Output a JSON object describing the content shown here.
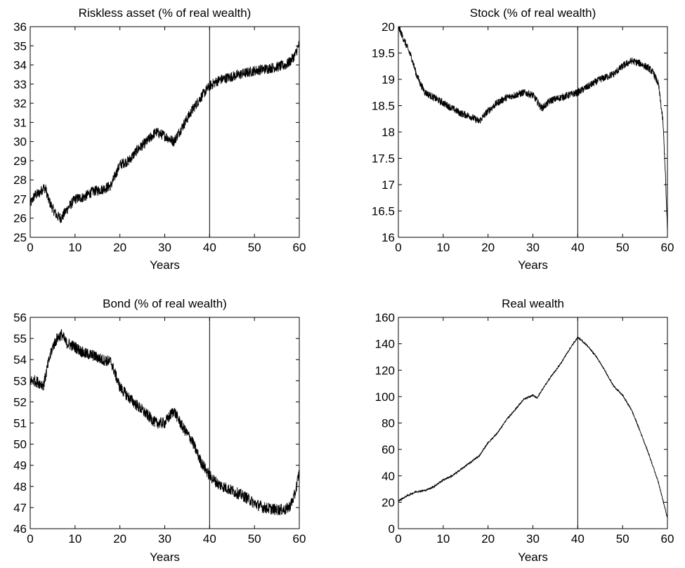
{
  "chart_data": [
    {
      "type": "line",
      "title": "Riskless asset (% of real wealth)",
      "xlabel": "Years",
      "ylabel": "",
      "xlim": [
        0,
        60
      ],
      "ylim": [
        25,
        36
      ],
      "xticks": [
        0,
        10,
        20,
        30,
        40,
        50,
        60
      ],
      "yticks": [
        25,
        26,
        27,
        28,
        29,
        30,
        31,
        32,
        33,
        34,
        35,
        36
      ],
      "vline_x": 40,
      "grid": false,
      "noise": 0.55,
      "series": [
        {
          "x": [
            0,
            1,
            2,
            3,
            3.5,
            4,
            5,
            6,
            7,
            8,
            10,
            12,
            14,
            16,
            18,
            20,
            22,
            24,
            26,
            28,
            30,
            32,
            34,
            36,
            38,
            40,
            42,
            45,
            50,
            55,
            57,
            58,
            59,
            60
          ],
          "values": [
            26.7,
            27.2,
            27.3,
            27.6,
            27.5,
            27.0,
            26.5,
            26.1,
            26.0,
            26.4,
            27.0,
            27.1,
            27.4,
            27.5,
            27.7,
            28.8,
            29.0,
            29.6,
            30.0,
            30.5,
            30.3,
            30.0,
            30.8,
            31.6,
            32.3,
            32.9,
            33.2,
            33.4,
            33.7,
            33.9,
            34.0,
            34.2,
            34.5,
            35.1
          ]
        }
      ]
    },
    {
      "type": "line",
      "title": "Stock (% of real wealth)",
      "xlabel": "Years",
      "ylabel": "",
      "xlim": [
        0,
        60
      ],
      "ylim": [
        16,
        20
      ],
      "xticks": [
        0,
        10,
        20,
        30,
        40,
        50,
        60
      ],
      "yticks": [
        16,
        16.5,
        17,
        17.5,
        18,
        18.5,
        19,
        19.5,
        20
      ],
      "vline_x": 40,
      "grid": false,
      "noise": 0.14,
      "series": [
        {
          "x": [
            0,
            1,
            2,
            3,
            4,
            5,
            6,
            8,
            10,
            12,
            14,
            16,
            18,
            20,
            22,
            24,
            26,
            28,
            30,
            32,
            34,
            36,
            38,
            40,
            42,
            45,
            48,
            50,
            52,
            54,
            56,
            57,
            58,
            59,
            59.5,
            60
          ],
          "values": [
            20.0,
            19.8,
            19.6,
            19.4,
            19.1,
            18.9,
            18.75,
            18.65,
            18.55,
            18.45,
            18.35,
            18.3,
            18.2,
            18.4,
            18.55,
            18.65,
            18.7,
            18.75,
            18.7,
            18.45,
            18.6,
            18.65,
            18.7,
            18.75,
            18.85,
            19.0,
            19.1,
            19.25,
            19.35,
            19.3,
            19.2,
            19.1,
            18.9,
            18.2,
            17.3,
            16.1
          ]
        }
      ]
    },
    {
      "type": "line",
      "title": "Bond (% of real wealth)",
      "xlabel": "Years",
      "ylabel": "",
      "xlim": [
        0,
        60
      ],
      "ylim": [
        46,
        56
      ],
      "xticks": [
        0,
        10,
        20,
        30,
        40,
        50,
        60
      ],
      "yticks": [
        46,
        47,
        48,
        49,
        50,
        51,
        52,
        53,
        54,
        55,
        56
      ],
      "vline_x": 40,
      "grid": false,
      "noise": 0.55,
      "series": [
        {
          "x": [
            0,
            1,
            2,
            3,
            4,
            5,
            6,
            7,
            8,
            10,
            12,
            14,
            16,
            18,
            20,
            22,
            24,
            26,
            28,
            30,
            32,
            34,
            36,
            38,
            40,
            42,
            45,
            48,
            50,
            52,
            55,
            57,
            58,
            59,
            60
          ],
          "values": [
            53.0,
            53.0,
            52.9,
            52.8,
            53.8,
            54.6,
            55.0,
            55.2,
            54.8,
            54.6,
            54.3,
            54.2,
            54.0,
            53.9,
            52.7,
            52.2,
            51.8,
            51.4,
            51.0,
            51.0,
            51.6,
            50.8,
            50.2,
            49.2,
            48.5,
            48.1,
            47.8,
            47.5,
            47.2,
            47.0,
            46.9,
            46.9,
            47.1,
            47.6,
            48.7
          ]
        }
      ]
    },
    {
      "type": "line",
      "title": "Real wealth",
      "xlabel": "Years",
      "ylabel": "",
      "xlim": [
        0,
        60
      ],
      "ylim": [
        0,
        160
      ],
      "xticks": [
        0,
        10,
        20,
        30,
        40,
        50,
        60
      ],
      "yticks": [
        0,
        20,
        40,
        60,
        80,
        100,
        120,
        140,
        160
      ],
      "vline_x": 40,
      "grid": false,
      "noise": 1.2,
      "series": [
        {
          "x": [
            0,
            2,
            4,
            6,
            8,
            10,
            12,
            14,
            16,
            18,
            20,
            22,
            24,
            26,
            28,
            30,
            31,
            32,
            34,
            36,
            38,
            40,
            42,
            44,
            46,
            48,
            50,
            52,
            54,
            56,
            58,
            60
          ],
          "values": [
            21,
            25,
            28,
            29,
            32,
            37,
            40,
            45,
            50,
            55,
            65,
            72,
            82,
            90,
            98,
            101,
            99,
            105,
            115,
            124,
            135,
            145,
            139,
            131,
            120,
            108,
            101,
            90,
            73,
            55,
            35,
            8
          ]
        }
      ]
    }
  ]
}
